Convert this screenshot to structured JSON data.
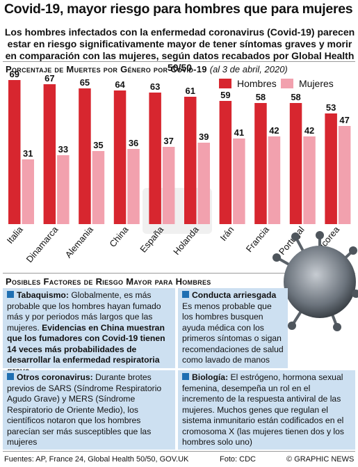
{
  "title": "Covid-19, mayor riesgo para hombres que para mujeres",
  "subtitle": "Los hombres infectados con la enfermedad coronavirus (Covid-19) parecen estar en riesgo significativamente mayor de tener síntomas graves y morir en comparación con las mujeres, según datos recabados por Global Health 50/50",
  "chart_data": {
    "type": "bar",
    "title": "Porcentaje de Muertes por Género por Covid-19",
    "note": "(al 3 de abril, 2020)",
    "categories": [
      "Italia",
      "Dinamarca",
      "Alemania",
      "China",
      "España",
      "Holanda",
      "Irán",
      "Francia",
      "Portugal",
      "Sudcorea"
    ],
    "series": [
      {
        "name": "Hombres",
        "color": "#d7262f",
        "values": [
          69,
          67,
          65,
          64,
          63,
          61,
          59,
          58,
          58,
          53
        ]
      },
      {
        "name": "Mujeres",
        "color": "#f2a1ae",
        "values": [
          31,
          33,
          35,
          36,
          37,
          39,
          41,
          42,
          42,
          47
        ]
      }
    ],
    "ylim": [
      0,
      70
    ],
    "legend": "top-right"
  },
  "watermark": "GRAPHIC NEWS",
  "factors": {
    "title": "Posibles Factores de Riesgo Mayor para Hombres",
    "tabaquismo": {
      "head": "Tabaquismo:",
      "text": " Globalmente, es más probable que los hombres hayan fumado más y por periodos más largos que las mujeres. ",
      "bold": "Evidencias en China muestran que los fumadores con Covid-19 tienen 14 veces más probabilidades de desarrollar la enfermedad respiratoria grave"
    },
    "conducta": {
      "head": "Conducta arriesgada",
      "text": "Es menos probable que los hombres busquen ayuda médica con los primeros síntomas o sigan recomendaciones de salud como lavado de manos"
    },
    "otros": {
      "head": "Otros coronavirus:",
      "text": " Durante brotes previos de SARS (Síndrome Respiratorio Agudo Grave) y MERS (Síndrome Respiratorio de Oriente Medio), los científicos notaron que los hombres parecían ser más susceptibles que las mujeres"
    },
    "biologia": {
      "head": "Biología:",
      "text": " El estrógeno, hormona sexual femenina, desempeña un rol en el incremento de la respuesta antiviral de las mujeres. Muchos genes que regulan el sistema inmunitario están codificados en el cromosoma X (las mujeres tienen dos y los hombres solo uno)"
    }
  },
  "footer": {
    "sources": "Fuentes: AP, France 24, Global Health 50/50, GOV.UK",
    "photo": "Foto: CDC",
    "credit": "© GRAPHIC NEWS"
  }
}
